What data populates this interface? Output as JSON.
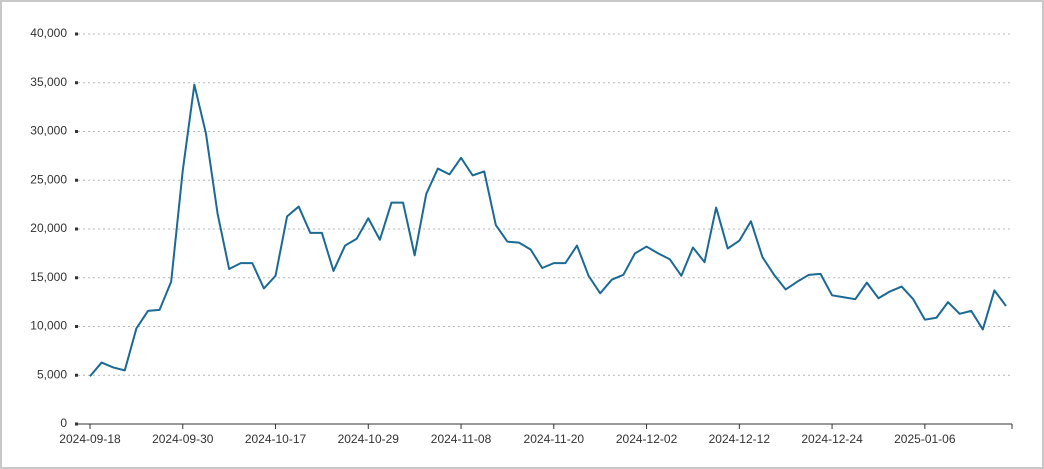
{
  "chart_data": {
    "type": "line",
    "categories": [
      "2024-09-18",
      null,
      null,
      null,
      null,
      null,
      null,
      null,
      "2024-09-30",
      null,
      null,
      null,
      null,
      null,
      null,
      null,
      "2024-10-17",
      null,
      null,
      null,
      null,
      null,
      null,
      null,
      "2024-10-29",
      null,
      null,
      null,
      null,
      null,
      null,
      null,
      "2024-11-08",
      null,
      null,
      null,
      null,
      null,
      null,
      null,
      "2024-11-20",
      null,
      null,
      null,
      null,
      null,
      null,
      null,
      "2024-12-02",
      null,
      null,
      null,
      null,
      null,
      null,
      null,
      "2024-12-12",
      null,
      null,
      null,
      null,
      null,
      null,
      null,
      "2024-12-24",
      null,
      null,
      null,
      null,
      null,
      null,
      null,
      "2025-01-06",
      null,
      null,
      null,
      null,
      null,
      null,
      null
    ],
    "values": [
      4900,
      6300,
      5800,
      5500,
      9800,
      11600,
      11700,
      14600,
      26000,
      34800,
      29800,
      21600,
      15900,
      16500,
      16500,
      13900,
      15200,
      21300,
      22300,
      19600,
      19600,
      15700,
      18300,
      19000,
      21100,
      18900,
      22700,
      22700,
      17300,
      23600,
      26200,
      25600,
      27300,
      25500,
      25900,
      20400,
      18700,
      18600,
      17900,
      16000,
      16500,
      16500,
      18300,
      15200,
      13400,
      14800,
      15300,
      17500,
      18200,
      17500,
      16900,
      15200,
      18100,
      16600,
      22200,
      18000,
      18800,
      20800,
      17100,
      15300,
      13800,
      14600,
      15300,
      15400,
      13200,
      13000,
      12800,
      14500,
      12900,
      13600,
      14100,
      12800,
      10700,
      10900,
      12500,
      11300,
      11600,
      9700,
      13700,
      12100
    ],
    "color": "#1b6a94",
    "ylim": [
      0,
      40000
    ],
    "yticks": [
      0,
      {
        "value": 5000,
        "label": "5,000"
      },
      {
        "value": 10000,
        "label": "10,000"
      },
      {
        "value": 15000,
        "label": "15,000"
      },
      {
        "value": 20000,
        "label": "20,000"
      },
      {
        "value": 25000,
        "label": "25,000"
      },
      {
        "value": 30000,
        "label": "30,000"
      },
      {
        "value": 35000,
        "label": "35,000"
      },
      {
        "value": 40000,
        "label": "40,000"
      }
    ],
    "grid": true
  }
}
